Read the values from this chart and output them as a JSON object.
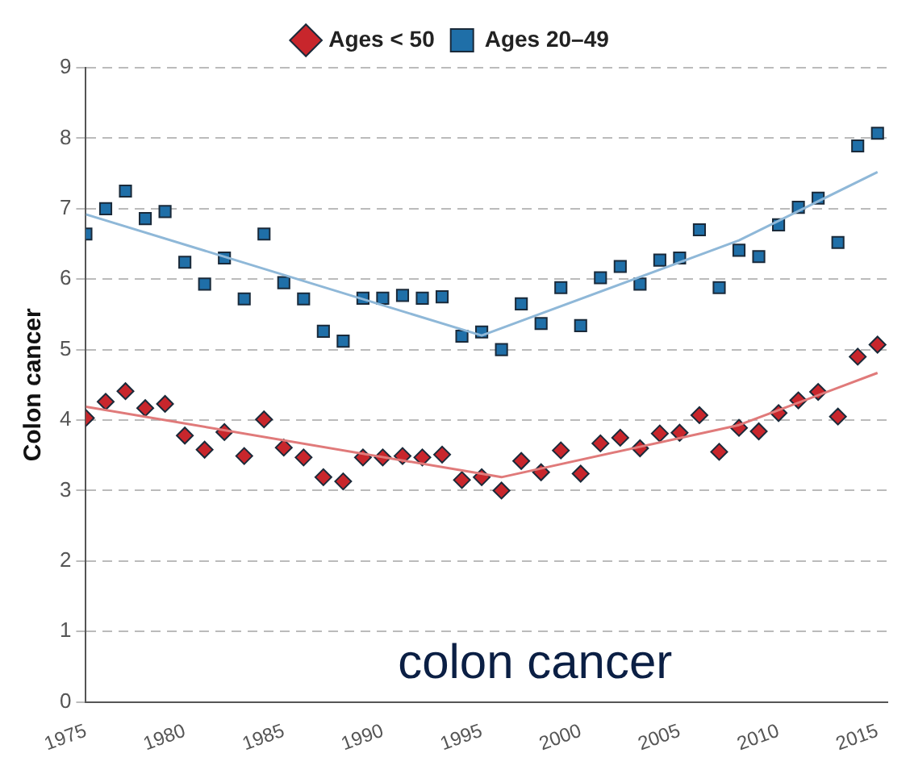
{
  "chart_data": {
    "type": "scatter",
    "ylabel": "Colon cancer",
    "annotations": [
      "colon cancer"
    ],
    "x": [
      1975,
      1976,
      1977,
      1978,
      1979,
      1980,
      1981,
      1982,
      1983,
      1984,
      1985,
      1986,
      1987,
      1988,
      1989,
      1990,
      1991,
      1992,
      1993,
      1994,
      1995,
      1996,
      1997,
      1998,
      1999,
      2000,
      2001,
      2002,
      2003,
      2004,
      2005,
      2006,
      2007,
      2008,
      2009,
      2010,
      2011,
      2012,
      2013,
      2014,
      2015
    ],
    "series": [
      {
        "name": "Ages < 50",
        "type": "scatter",
        "marker": "diamond",
        "color": "#c8262c",
        "values": [
          4.03,
          4.26,
          4.41,
          4.17,
          4.23,
          3.78,
          3.58,
          3.83,
          3.49,
          4.01,
          3.61,
          3.47,
          3.19,
          3.13,
          3.47,
          3.47,
          3.49,
          3.47,
          3.51,
          3.15,
          3.19,
          3.0,
          3.42,
          3.26,
          3.57,
          3.24,
          3.67,
          3.75,
          3.6,
          3.81,
          3.82,
          4.07,
          3.55,
          3.89,
          3.84,
          4.1,
          4.28,
          4.4,
          4.05,
          4.9,
          5.07
        ]
      },
      {
        "name": "Ages 20–49",
        "type": "scatter",
        "marker": "square",
        "color": "#1f6fa8",
        "values": [
          6.64,
          7.0,
          7.25,
          6.86,
          6.96,
          6.24,
          5.93,
          6.3,
          5.72,
          6.64,
          5.95,
          5.72,
          5.26,
          5.12,
          5.73,
          5.73,
          5.77,
          5.73,
          5.75,
          5.19,
          5.25,
          5.0,
          5.65,
          5.37,
          5.88,
          5.34,
          6.02,
          6.18,
          5.93,
          6.27,
          6.3,
          6.7,
          5.88,
          6.41,
          6.32,
          6.77,
          7.02,
          7.15,
          6.52,
          7.89,
          8.07
        ]
      },
      {
        "type": "line",
        "marker": "none",
        "color": "#e07a7a",
        "x": [
          1975,
          1996,
          2008,
          2015
        ],
        "values": [
          4.19,
          3.19,
          3.93,
          4.67
        ]
      },
      {
        "type": "line",
        "marker": "none",
        "color": "#8fb8d8",
        "x": [
          1975,
          1995,
          2008,
          2015
        ],
        "values": [
          6.92,
          5.2,
          6.55,
          7.52
        ]
      }
    ],
    "xlim": [
      1975,
      2015.5
    ],
    "xticks": [
      1975,
      1980,
      1985,
      1990,
      1995,
      2000,
      2005,
      2010,
      2015
    ],
    "ylim": [
      0,
      9
    ],
    "yticks": [
      0,
      1,
      2,
      3,
      4,
      5,
      6,
      7,
      8,
      9
    ],
    "grid": "y",
    "legend": "top"
  }
}
